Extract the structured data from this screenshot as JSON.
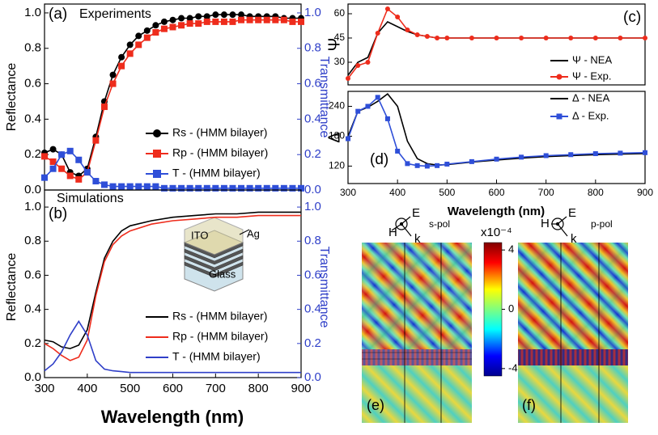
{
  "chart_data": [
    {
      "type": "line",
      "panel_label": "(a)",
      "title": "Experiments",
      "ylabel": "Reflectance",
      "y2label": "Transmittance",
      "x": [
        300,
        320,
        340,
        360,
        380,
        400,
        420,
        440,
        460,
        480,
        500,
        520,
        540,
        560,
        580,
        600,
        620,
        640,
        660,
        680,
        700,
        720,
        740,
        760,
        780,
        800,
        820,
        840,
        860,
        880,
        900
      ],
      "series": [
        {
          "name": "Rs - (HMM bilayer)",
          "color": "#000000",
          "marker": "circle",
          "values": [
            0.21,
            0.23,
            0.2,
            0.1,
            0.08,
            0.12,
            0.3,
            0.5,
            0.65,
            0.75,
            0.82,
            0.87,
            0.9,
            0.93,
            0.95,
            0.96,
            0.97,
            0.97,
            0.98,
            0.98,
            0.99,
            0.99,
            0.99,
            0.99,
            0.98,
            0.98,
            0.98,
            0.98,
            0.97,
            0.97,
            0.97
          ]
        },
        {
          "name": "Rp - (HMM bilayer)",
          "color": "#ee2c1c",
          "marker": "square",
          "values": [
            0.19,
            0.16,
            0.12,
            0.08,
            0.06,
            0.1,
            0.28,
            0.47,
            0.6,
            0.7,
            0.77,
            0.82,
            0.86,
            0.89,
            0.91,
            0.92,
            0.93,
            0.94,
            0.94,
            0.95,
            0.95,
            0.95,
            0.95,
            0.96,
            0.96,
            0.96,
            0.96,
            0.96,
            0.96,
            0.95,
            0.95
          ]
        },
        {
          "name": "T - (HMM bilayer)",
          "color": "#2f4fd8",
          "marker": "square",
          "axis": "y2",
          "values": [
            0.07,
            0.12,
            0.2,
            0.22,
            0.17,
            0.1,
            0.05,
            0.03,
            0.02,
            0.02,
            0.02,
            0.02,
            0.02,
            0.02,
            0.01,
            0.01,
            0.01,
            0.01,
            0.01,
            0.01,
            0.01,
            0.01,
            0.01,
            0.01,
            0.01,
            0.01,
            0.01,
            0.01,
            0.01,
            0.01,
            0.01
          ]
        }
      ],
      "xlim": [
        300,
        900
      ],
      "ylim": [
        0,
        1.05
      ],
      "yticks": [
        {
          "value": 0,
          "label": "0.0"
        },
        0.2,
        0.4,
        0.6,
        0.8,
        {
          "value": 1,
          "label": "1.0"
        }
      ],
      "y2lim": [
        0,
        1.05
      ],
      "y2ticks": [
        {
          "value": 0,
          "label": "0.0"
        },
        0.2,
        0.4,
        0.6,
        0.8,
        {
          "value": 1,
          "label": "1.0"
        }
      ],
      "legend": "lower right"
    },
    {
      "type": "line",
      "panel_label": "(b)",
      "title": "Simulations",
      "ylabel": "Reflectance",
      "y2label": "Transmittance",
      "xlabel": "Wavelength (nm)",
      "inset_labels": [
        "ITO",
        "Ag",
        "Glass"
      ],
      "x": [
        300,
        320,
        340,
        360,
        380,
        400,
        420,
        440,
        460,
        480,
        500,
        550,
        600,
        650,
        700,
        750,
        800,
        850,
        900
      ],
      "series": [
        {
          "name": "Rs - (HMM bilayer)",
          "color": "#000000",
          "values": [
            0.22,
            0.21,
            0.18,
            0.17,
            0.19,
            0.28,
            0.5,
            0.7,
            0.8,
            0.86,
            0.89,
            0.92,
            0.94,
            0.95,
            0.96,
            0.96,
            0.97,
            0.97,
            0.97
          ]
        },
        {
          "name": "Rp - (HMM bilayer)",
          "color": "#ee2c1c",
          "values": [
            0.2,
            0.17,
            0.13,
            0.1,
            0.12,
            0.22,
            0.48,
            0.68,
            0.78,
            0.83,
            0.86,
            0.9,
            0.92,
            0.93,
            0.94,
            0.94,
            0.95,
            0.95,
            0.95
          ]
        },
        {
          "name": "T - (HMM bilayer)",
          "color": "#2f3fc8",
          "axis": "y2",
          "values": [
            0.04,
            0.08,
            0.15,
            0.25,
            0.33,
            0.25,
            0.1,
            0.05,
            0.04,
            0.035,
            0.03,
            0.03,
            0.03,
            0.03,
            0.03,
            0.03,
            0.03,
            0.03,
            0.03
          ]
        }
      ],
      "xlim": [
        300,
        900
      ],
      "xticks": [
        300,
        400,
        500,
        600,
        700,
        800,
        900
      ],
      "ylim": [
        0,
        1.1
      ],
      "yticks": [
        {
          "value": 0,
          "label": "0.0"
        },
        0.2,
        0.4,
        0.6,
        0.8,
        {
          "value": 1,
          "label": "1.0"
        }
      ],
      "y2lim": [
        0,
        1.1
      ],
      "y2ticks": [
        {
          "value": 0,
          "label": "0.0"
        },
        0.2,
        0.4,
        0.6,
        0.8,
        {
          "value": 1,
          "label": "1.0"
        }
      ],
      "legend": "lower right"
    },
    {
      "type": "line",
      "panel_label": "(c)",
      "ylabel": "Ψ",
      "x": [
        300,
        320,
        340,
        360,
        380,
        400,
        420,
        440,
        460,
        480,
        500,
        550,
        600,
        650,
        700,
        750,
        800,
        850,
        900
      ],
      "series": [
        {
          "name": "Ψ - NEA",
          "color": "#000000",
          "values": [
            22,
            30,
            33,
            48,
            55,
            52,
            49,
            47,
            46,
            45,
            45,
            45,
            45,
            45,
            45,
            45,
            45,
            45,
            45
          ]
        },
        {
          "name": "Ψ - Exp.",
          "color": "#ee2c1c",
          "marker": "circle",
          "values": [
            20,
            28,
            30,
            48,
            63,
            58,
            50,
            47,
            46,
            45,
            45,
            45,
            45,
            45,
            45,
            45,
            45,
            45,
            45
          ]
        }
      ],
      "xlim": [
        300,
        900
      ],
      "ylim": [
        16,
        66
      ],
      "yticks": [
        30,
        45,
        60
      ],
      "legend": "upper right"
    },
    {
      "type": "line",
      "panel_label": "(d)",
      "ylabel": "Δ",
      "xlabel": "Wavelength (nm)",
      "x": [
        300,
        320,
        340,
        360,
        380,
        400,
        420,
        440,
        460,
        480,
        500,
        550,
        600,
        650,
        700,
        750,
        800,
        850,
        900
      ],
      "series": [
        {
          "name": "Δ - NEA",
          "color": "#000000",
          "values": [
            180,
            230,
            238,
            250,
            265,
            240,
            170,
            135,
            125,
            122,
            123,
            128,
            132,
            136,
            139,
            141,
            143,
            144,
            145
          ]
        },
        {
          "name": "Δ - Exp.",
          "color": "#2f4fd8",
          "marker": "square",
          "values": [
            175,
            230,
            240,
            258,
            215,
            150,
            125,
            121,
            120,
            121,
            124,
            129,
            134,
            138,
            141,
            143,
            145,
            146,
            147
          ]
        }
      ],
      "xlim": [
        300,
        900
      ],
      "xticks": [
        300,
        400,
        500,
        600,
        700,
        800,
        900
      ],
      "ylim": [
        85,
        270
      ],
      "yticks": [
        120,
        180,
        240
      ],
      "legend": "upper right"
    }
  ],
  "field_maps": {
    "panels": [
      {
        "label": "(e)",
        "polarization": "s-pol",
        "e": "E",
        "h": "H",
        "k": "k"
      },
      {
        "label": "(f)",
        "polarization": "p-pol",
        "e": "E",
        "h": "H",
        "k": "k"
      }
    ],
    "colorbar": {
      "label": "x10⁻⁴",
      "clim": [
        -4.5,
        4.5
      ],
      "ticks": [
        4,
        0,
        -4
      ]
    }
  }
}
